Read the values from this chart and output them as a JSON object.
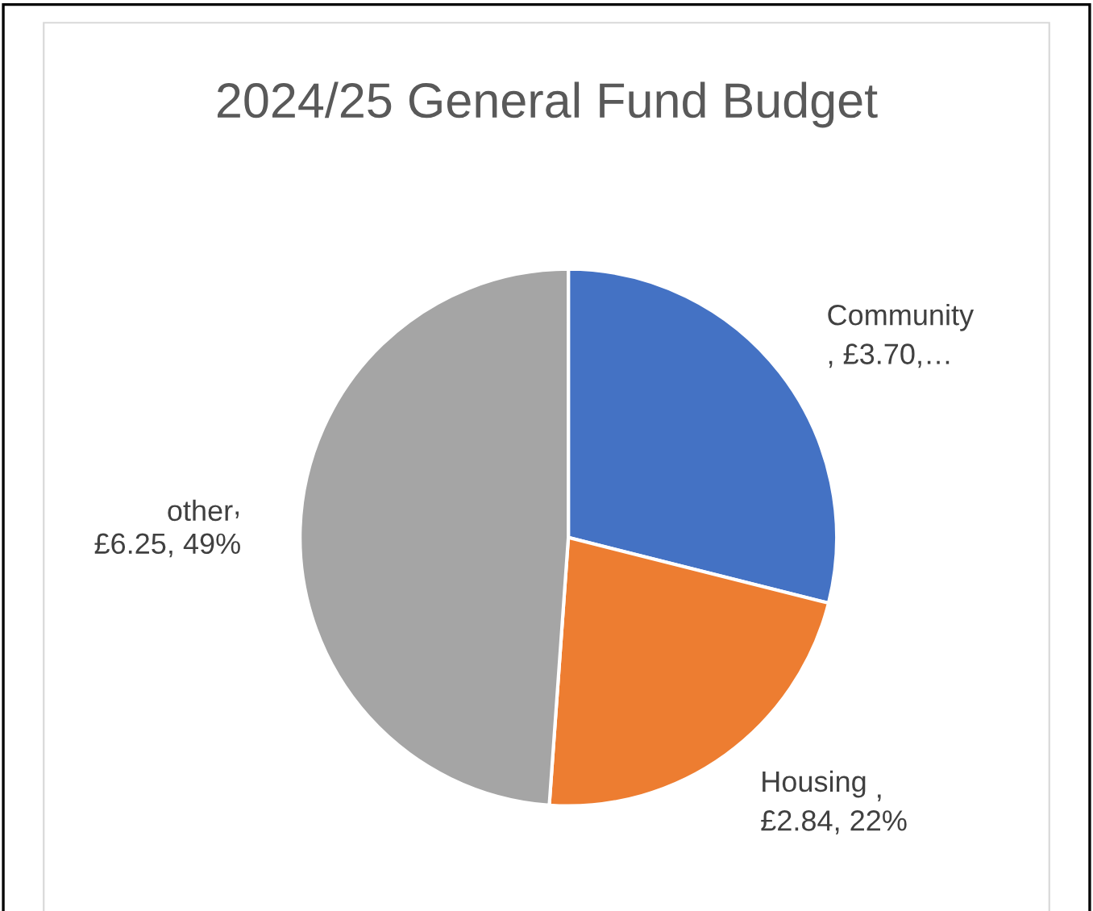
{
  "chart_data": {
    "type": "pie",
    "title": "2024/25 General Fund Budget",
    "categories": [
      "Community",
      "Housing",
      "other"
    ],
    "values": [
      3.7,
      2.84,
      6.25
    ],
    "colors": [
      "#4472c4",
      "#ed7d31",
      "#a5a5a5"
    ],
    "value_labels": [
      "\n, £3.70,…",
      " ,\n£2.84, 22%",
      ",\n£6.25, 49%"
    ],
    "legend": false
  }
}
